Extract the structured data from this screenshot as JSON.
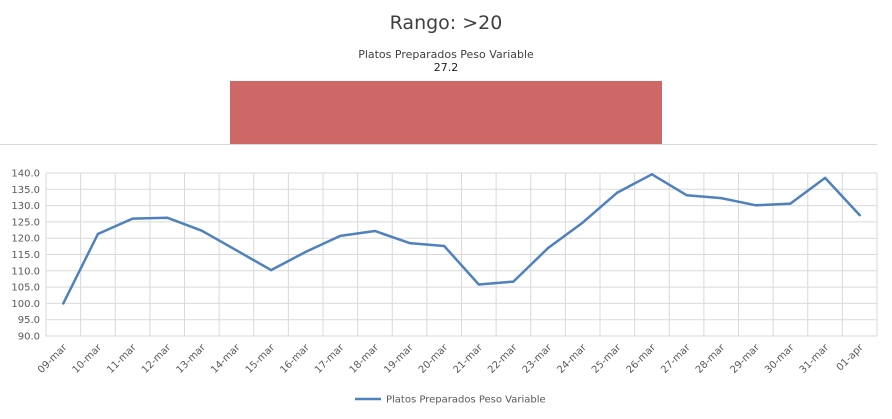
{
  "header": {
    "title": "Rango: >20",
    "bar_label": "Platos Preparados Peso Variable",
    "bar_value": "27.2"
  },
  "colors": {
    "bar": "#cd6866",
    "line": "#4f81bd",
    "grid": "#d9d9d9"
  },
  "chart_data": [
    {
      "type": "bar",
      "categories": [
        "Platos Preparados Peso Variable"
      ],
      "values": [
        27.2
      ]
    },
    {
      "type": "line",
      "categories": [
        "09-mar",
        "10-mar",
        "11-mar",
        "12-mar",
        "13-mar",
        "14-mar",
        "15-mar",
        "16-mar",
        "17-mar",
        "18-mar",
        "19-mar",
        "20-mar",
        "21-mar",
        "22-mar",
        "23-mar",
        "24-mar",
        "25-mar",
        "26-mar",
        "27-mar",
        "28-mar",
        "29-mar",
        "30-mar",
        "31-mar",
        "01-apr"
      ],
      "series": [
        {
          "name": "Platos Preparados Peso Variable",
          "values": [
            100.0,
            121.3,
            126.0,
            126.3,
            122.3,
            116.3,
            110.2,
            115.8,
            120.7,
            122.2,
            118.5,
            117.6,
            105.8,
            106.7,
            117.0,
            124.8,
            134.0,
            139.6,
            133.2,
            132.3,
            130.1,
            130.6,
            138.5,
            127.1
          ]
        }
      ],
      "ylim": [
        90,
        140
      ],
      "yticks": [
        "90.0",
        "95.0",
        "100.0",
        "105.0",
        "110.0",
        "115.0",
        "120.0",
        "125.0",
        "130.0",
        "135.0",
        "140.0"
      ],
      "grid": true,
      "legend": "bottom"
    }
  ]
}
